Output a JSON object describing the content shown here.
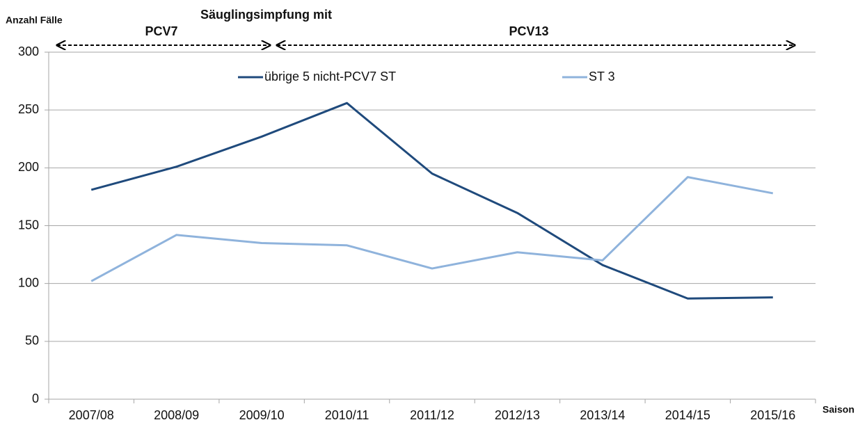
{
  "chart_data": {
    "type": "line",
    "y_label": "Anzahl Fälle",
    "x_label": "Saison",
    "annotations": {
      "header": "Säuglingsimpfung mit",
      "phases": [
        "PCV7",
        "PCV13"
      ]
    },
    "categories": [
      "2007/08",
      "2008/09",
      "2009/10",
      "2010/11",
      "2011/12",
      "2012/13",
      "2013/14",
      "2014/15",
      "2015/16"
    ],
    "series": [
      {
        "name": "übrige 5 nicht-PCV7 ST",
        "color": "#1f4a7c",
        "values": [
          181,
          201,
          227,
          256,
          195,
          161,
          116,
          87,
          88
        ]
      },
      {
        "name": "ST 3",
        "color": "#8fb3dc",
        "values": [
          102,
          142,
          135,
          133,
          113,
          127,
          120,
          192,
          178
        ]
      }
    ],
    "ylim": [
      0,
      300
    ],
    "yticks": [
      0,
      50,
      100,
      150,
      200,
      250,
      300
    ],
    "grid": true
  }
}
